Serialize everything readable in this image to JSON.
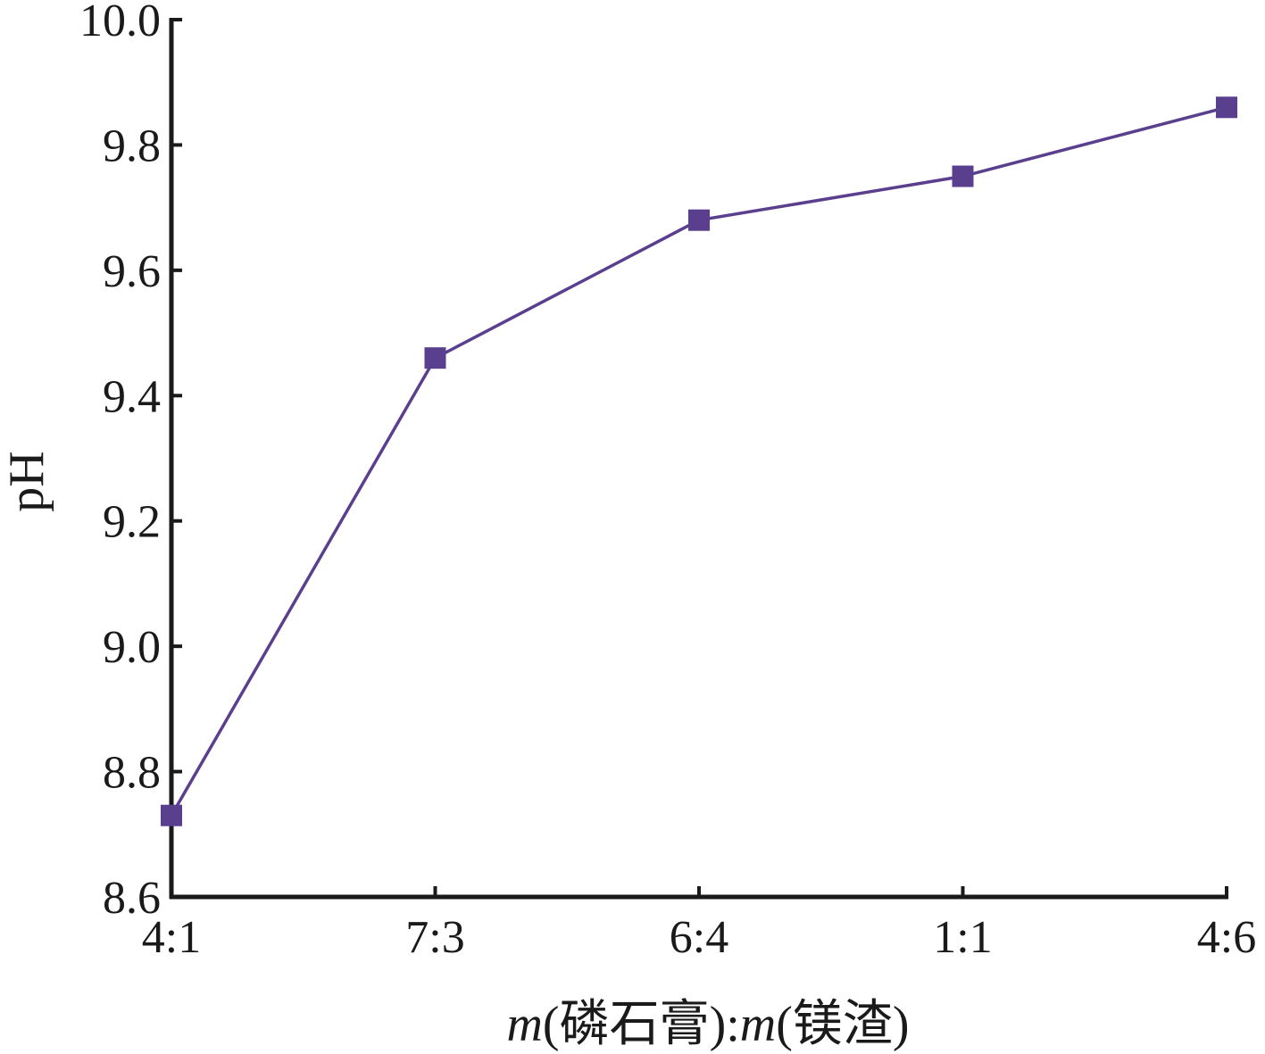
{
  "chart_data": {
    "type": "line",
    "title": "",
    "xlabel_parts": [
      {
        "text": "m",
        "italic": true
      },
      {
        "text": "(磷石膏):",
        "italic": false
      },
      {
        "text": "m",
        "italic": true
      },
      {
        "text": "(镁渣)",
        "italic": false
      }
    ],
    "ylabel": "pH",
    "categories": [
      "4:1",
      "7:3",
      "6:4",
      "1:1",
      "4:6"
    ],
    "series": [
      {
        "values": [
          8.73,
          9.46,
          9.68,
          9.75,
          9.86
        ],
        "color": "#5b3f8f",
        "marker": "square"
      }
    ],
    "ylim": [
      8.6,
      10.0
    ],
    "yticks": [
      8.6,
      8.8,
      9.0,
      9.2,
      9.4,
      9.6,
      9.8,
      10.0
    ],
    "ytick_labels": [
      "8.6",
      "8.8",
      "9.0",
      "9.2",
      "9.4",
      "9.6",
      "9.8",
      "10.0"
    ],
    "grid": false,
    "legend": "none"
  }
}
